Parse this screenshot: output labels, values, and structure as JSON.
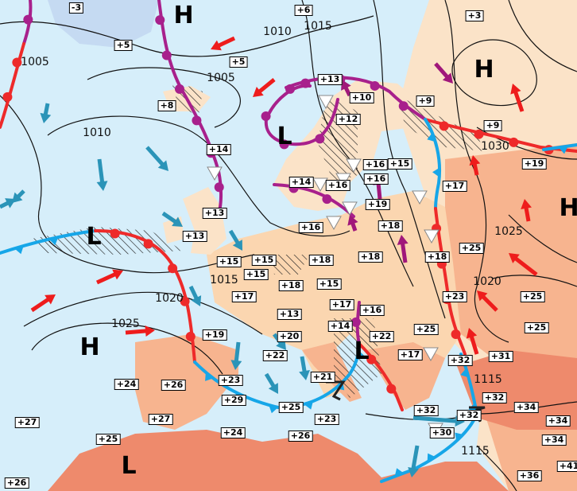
{
  "map": {
    "temperatures": [
      "-3",
      "+6",
      "+3",
      "+5",
      "+5",
      "+13",
      "+10",
      "+9",
      "+8",
      "+12",
      "+9",
      "+14",
      "+16",
      "+15",
      "+19",
      "+16",
      "+14",
      "+16",
      "+17",
      "+19",
      "+13",
      "+16",
      "+18",
      "+13",
      "+15",
      "+18",
      "+18",
      "+18",
      "+25",
      "+15",
      "+15",
      "+18",
      "+15",
      "+17",
      "+23",
      "+25",
      "+17",
      "+16",
      "+13",
      "+14",
      "+22",
      "+25",
      "+25",
      "+19",
      "+20",
      "+22",
      "+17",
      "+32",
      "+31",
      "+21",
      "+23",
      "+24",
      "+26",
      "+29",
      "+25",
      "+32",
      "+32",
      "+32",
      "+34",
      "+34",
      "+27",
      "+27",
      "+23",
      "+30",
      "+24",
      "+26",
      "+34",
      "+25",
      "+41",
      "+36",
      "+26"
    ],
    "isobar_labels": [
      "1005",
      "1010",
      "1015",
      "1005",
      "1010",
      "1030",
      "1025",
      "1020",
      "1015",
      "1020",
      "1025",
      "1115",
      "1115"
    ],
    "pressure_centers": [
      "H",
      "H",
      "H",
      "H",
      "L",
      "L",
      "L",
      "L"
    ],
    "colors": {
      "sea": "#d6eefa",
      "land_cool": "#fbe3c8",
      "land_warm": "#f7b48f",
      "land_hot": "#ee8a6c",
      "warm_front": "#ee2a2a",
      "cold_front": "#16a6e8",
      "occluded_front": "#a8208c",
      "wind_warm": "#ee1c1c",
      "wind_cold": "#2b94b8",
      "wind_occluded": "#a0177a"
    }
  }
}
